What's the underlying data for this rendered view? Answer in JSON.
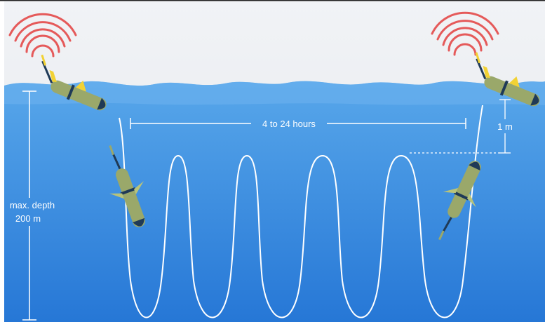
{
  "labels": {
    "interval": "4 to 24 hours",
    "surface_offset": "1 m",
    "depth_line1": "max. depth",
    "depth_line2": "200 m"
  },
  "diagram": {
    "dive_cycles": 5,
    "colors": {
      "sky": "#eef0f3",
      "water_top": "#4f9fe6",
      "water_bottom": "#2577d6",
      "glider_body": "#9aa86a",
      "glider_nose": "#1f3a57",
      "glider_fin": "#f2d234",
      "signal": "#e55a5a",
      "path": "#ffffff"
    }
  }
}
